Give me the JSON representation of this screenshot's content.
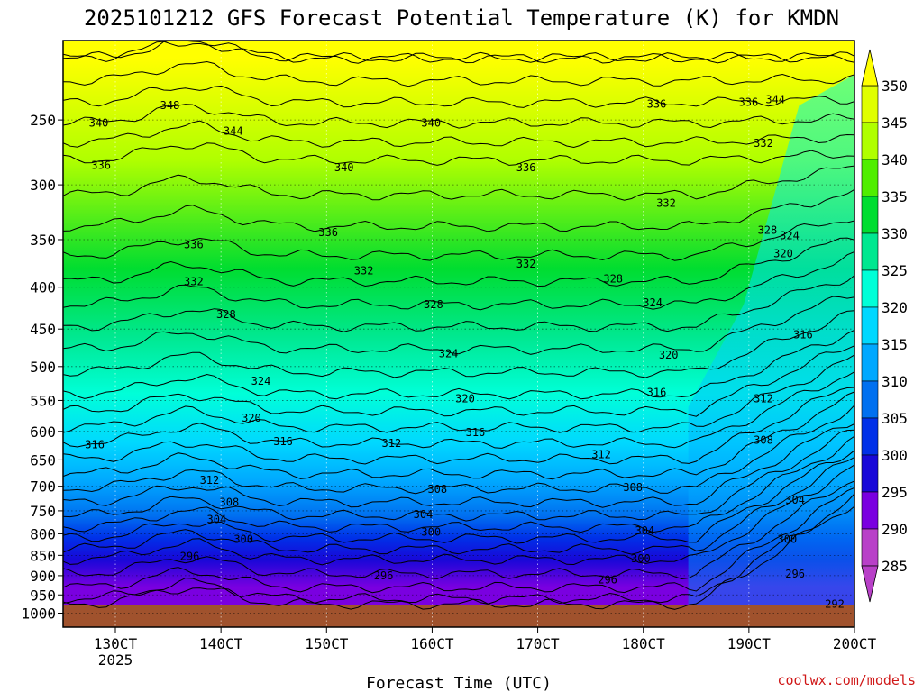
{
  "chart_data": {
    "type": "heatmap",
    "title": "2025101212 GFS Forecast Potential Temperature (K) for KMDN",
    "xlabel": "Forecast Time (UTC)",
    "ylabel": "",
    "x_ticks": [
      {
        "label": "130CT",
        "sub": "2025"
      },
      {
        "label": "140CT",
        "sub": ""
      },
      {
        "label": "150CT",
        "sub": ""
      },
      {
        "label": "160CT",
        "sub": ""
      },
      {
        "label": "170CT",
        "sub": ""
      },
      {
        "label": "180CT",
        "sub": ""
      },
      {
        "label": "190CT",
        "sub": ""
      },
      {
        "label": "200CT",
        "sub": ""
      }
    ],
    "y_ticks": [
      250,
      300,
      350,
      400,
      450,
      500,
      550,
      600,
      650,
      700,
      750,
      800,
      850,
      900,
      950,
      1000
    ],
    "y_axis": "pressure (hPa), log scale, reversed",
    "colorbar_ticks": [
      350,
      345,
      340,
      335,
      330,
      325,
      320,
      315,
      310,
      305,
      300,
      295,
      290,
      285
    ],
    "colorbar_colors": {
      "350": "#ffff00",
      "345": "#e0ff00",
      "340": "#b0ff00",
      "335": "#50ee00",
      "330": "#00dd30",
      "325": "#00e890",
      "320": "#00ffd8",
      "315": "#00d8ff",
      "310": "#00a8ff",
      "305": "#0070f0",
      "300": "#0030e8",
      "295": "#1808d8",
      "290": "#7a00e0",
      "285": "#b840c8"
    },
    "ground_color": "#a0522d",
    "contour_labels": [
      {
        "v": 348,
        "t": 0.135,
        "p": 240
      },
      {
        "v": 344,
        "t": 0.215,
        "p": 258
      },
      {
        "v": 340,
        "t": 0.045,
        "p": 252
      },
      {
        "v": 340,
        "t": 0.355,
        "p": 286
      },
      {
        "v": 340,
        "t": 0.465,
        "p": 252
      },
      {
        "v": 336,
        "t": 0.048,
        "p": 284
      },
      {
        "v": 336,
        "t": 0.165,
        "p": 355
      },
      {
        "v": 336,
        "t": 0.335,
        "p": 343
      },
      {
        "v": 336,
        "t": 0.585,
        "p": 286
      },
      {
        "v": 336,
        "t": 0.75,
        "p": 239
      },
      {
        "v": 336,
        "t": 0.866,
        "p": 238
      },
      {
        "v": 344,
        "t": 0.9,
        "p": 236
      },
      {
        "v": 332,
        "t": 0.165,
        "p": 394
      },
      {
        "v": 332,
        "t": 0.38,
        "p": 382
      },
      {
        "v": 332,
        "t": 0.585,
        "p": 375
      },
      {
        "v": 332,
        "t": 0.762,
        "p": 316
      },
      {
        "v": 332,
        "t": 0.885,
        "p": 267
      },
      {
        "v": 328,
        "t": 0.206,
        "p": 432
      },
      {
        "v": 328,
        "t": 0.468,
        "p": 420
      },
      {
        "v": 328,
        "t": 0.695,
        "p": 391
      },
      {
        "v": 328,
        "t": 0.89,
        "p": 341
      },
      {
        "v": 324,
        "t": 0.918,
        "p": 346
      },
      {
        "v": 320,
        "t": 0.91,
        "p": 364
      },
      {
        "v": 324,
        "t": 0.25,
        "p": 521
      },
      {
        "v": 324,
        "t": 0.487,
        "p": 482
      },
      {
        "v": 324,
        "t": 0.745,
        "p": 418
      },
      {
        "v": 320,
        "t": 0.238,
        "p": 578
      },
      {
        "v": 320,
        "t": 0.508,
        "p": 547
      },
      {
        "v": 320,
        "t": 0.765,
        "p": 484
      },
      {
        "v": 316,
        "t": 0.04,
        "p": 623
      },
      {
        "v": 316,
        "t": 0.278,
        "p": 617
      },
      {
        "v": 316,
        "t": 0.521,
        "p": 602
      },
      {
        "v": 316,
        "t": 0.75,
        "p": 538
      },
      {
        "v": 316,
        "t": 0.935,
        "p": 457
      },
      {
        "v": 312,
        "t": 0.185,
        "p": 688
      },
      {
        "v": 312,
        "t": 0.415,
        "p": 620
      },
      {
        "v": 312,
        "t": 0.68,
        "p": 640
      },
      {
        "v": 312,
        "t": 0.885,
        "p": 547
      },
      {
        "v": 308,
        "t": 0.21,
        "p": 732
      },
      {
        "v": 308,
        "t": 0.473,
        "p": 706
      },
      {
        "v": 308,
        "t": 0.72,
        "p": 702
      },
      {
        "v": 308,
        "t": 0.885,
        "p": 615
      },
      {
        "v": 304,
        "t": 0.194,
        "p": 768
      },
      {
        "v": 304,
        "t": 0.455,
        "p": 758
      },
      {
        "v": 304,
        "t": 0.735,
        "p": 793
      },
      {
        "v": 304,
        "t": 0.925,
        "p": 728
      },
      {
        "v": 300,
        "t": 0.228,
        "p": 812
      },
      {
        "v": 300,
        "t": 0.465,
        "p": 796
      },
      {
        "v": 300,
        "t": 0.73,
        "p": 858
      },
      {
        "v": 300,
        "t": 0.915,
        "p": 812
      },
      {
        "v": 296,
        "t": 0.16,
        "p": 852
      },
      {
        "v": 296,
        "t": 0.405,
        "p": 900
      },
      {
        "v": 296,
        "t": 0.688,
        "p": 910
      },
      {
        "v": 296,
        "t": 0.925,
        "p": 896
      },
      {
        "v": 292,
        "t": 0.975,
        "p": 975
      }
    ]
  },
  "credit": "coolwx.com/models"
}
